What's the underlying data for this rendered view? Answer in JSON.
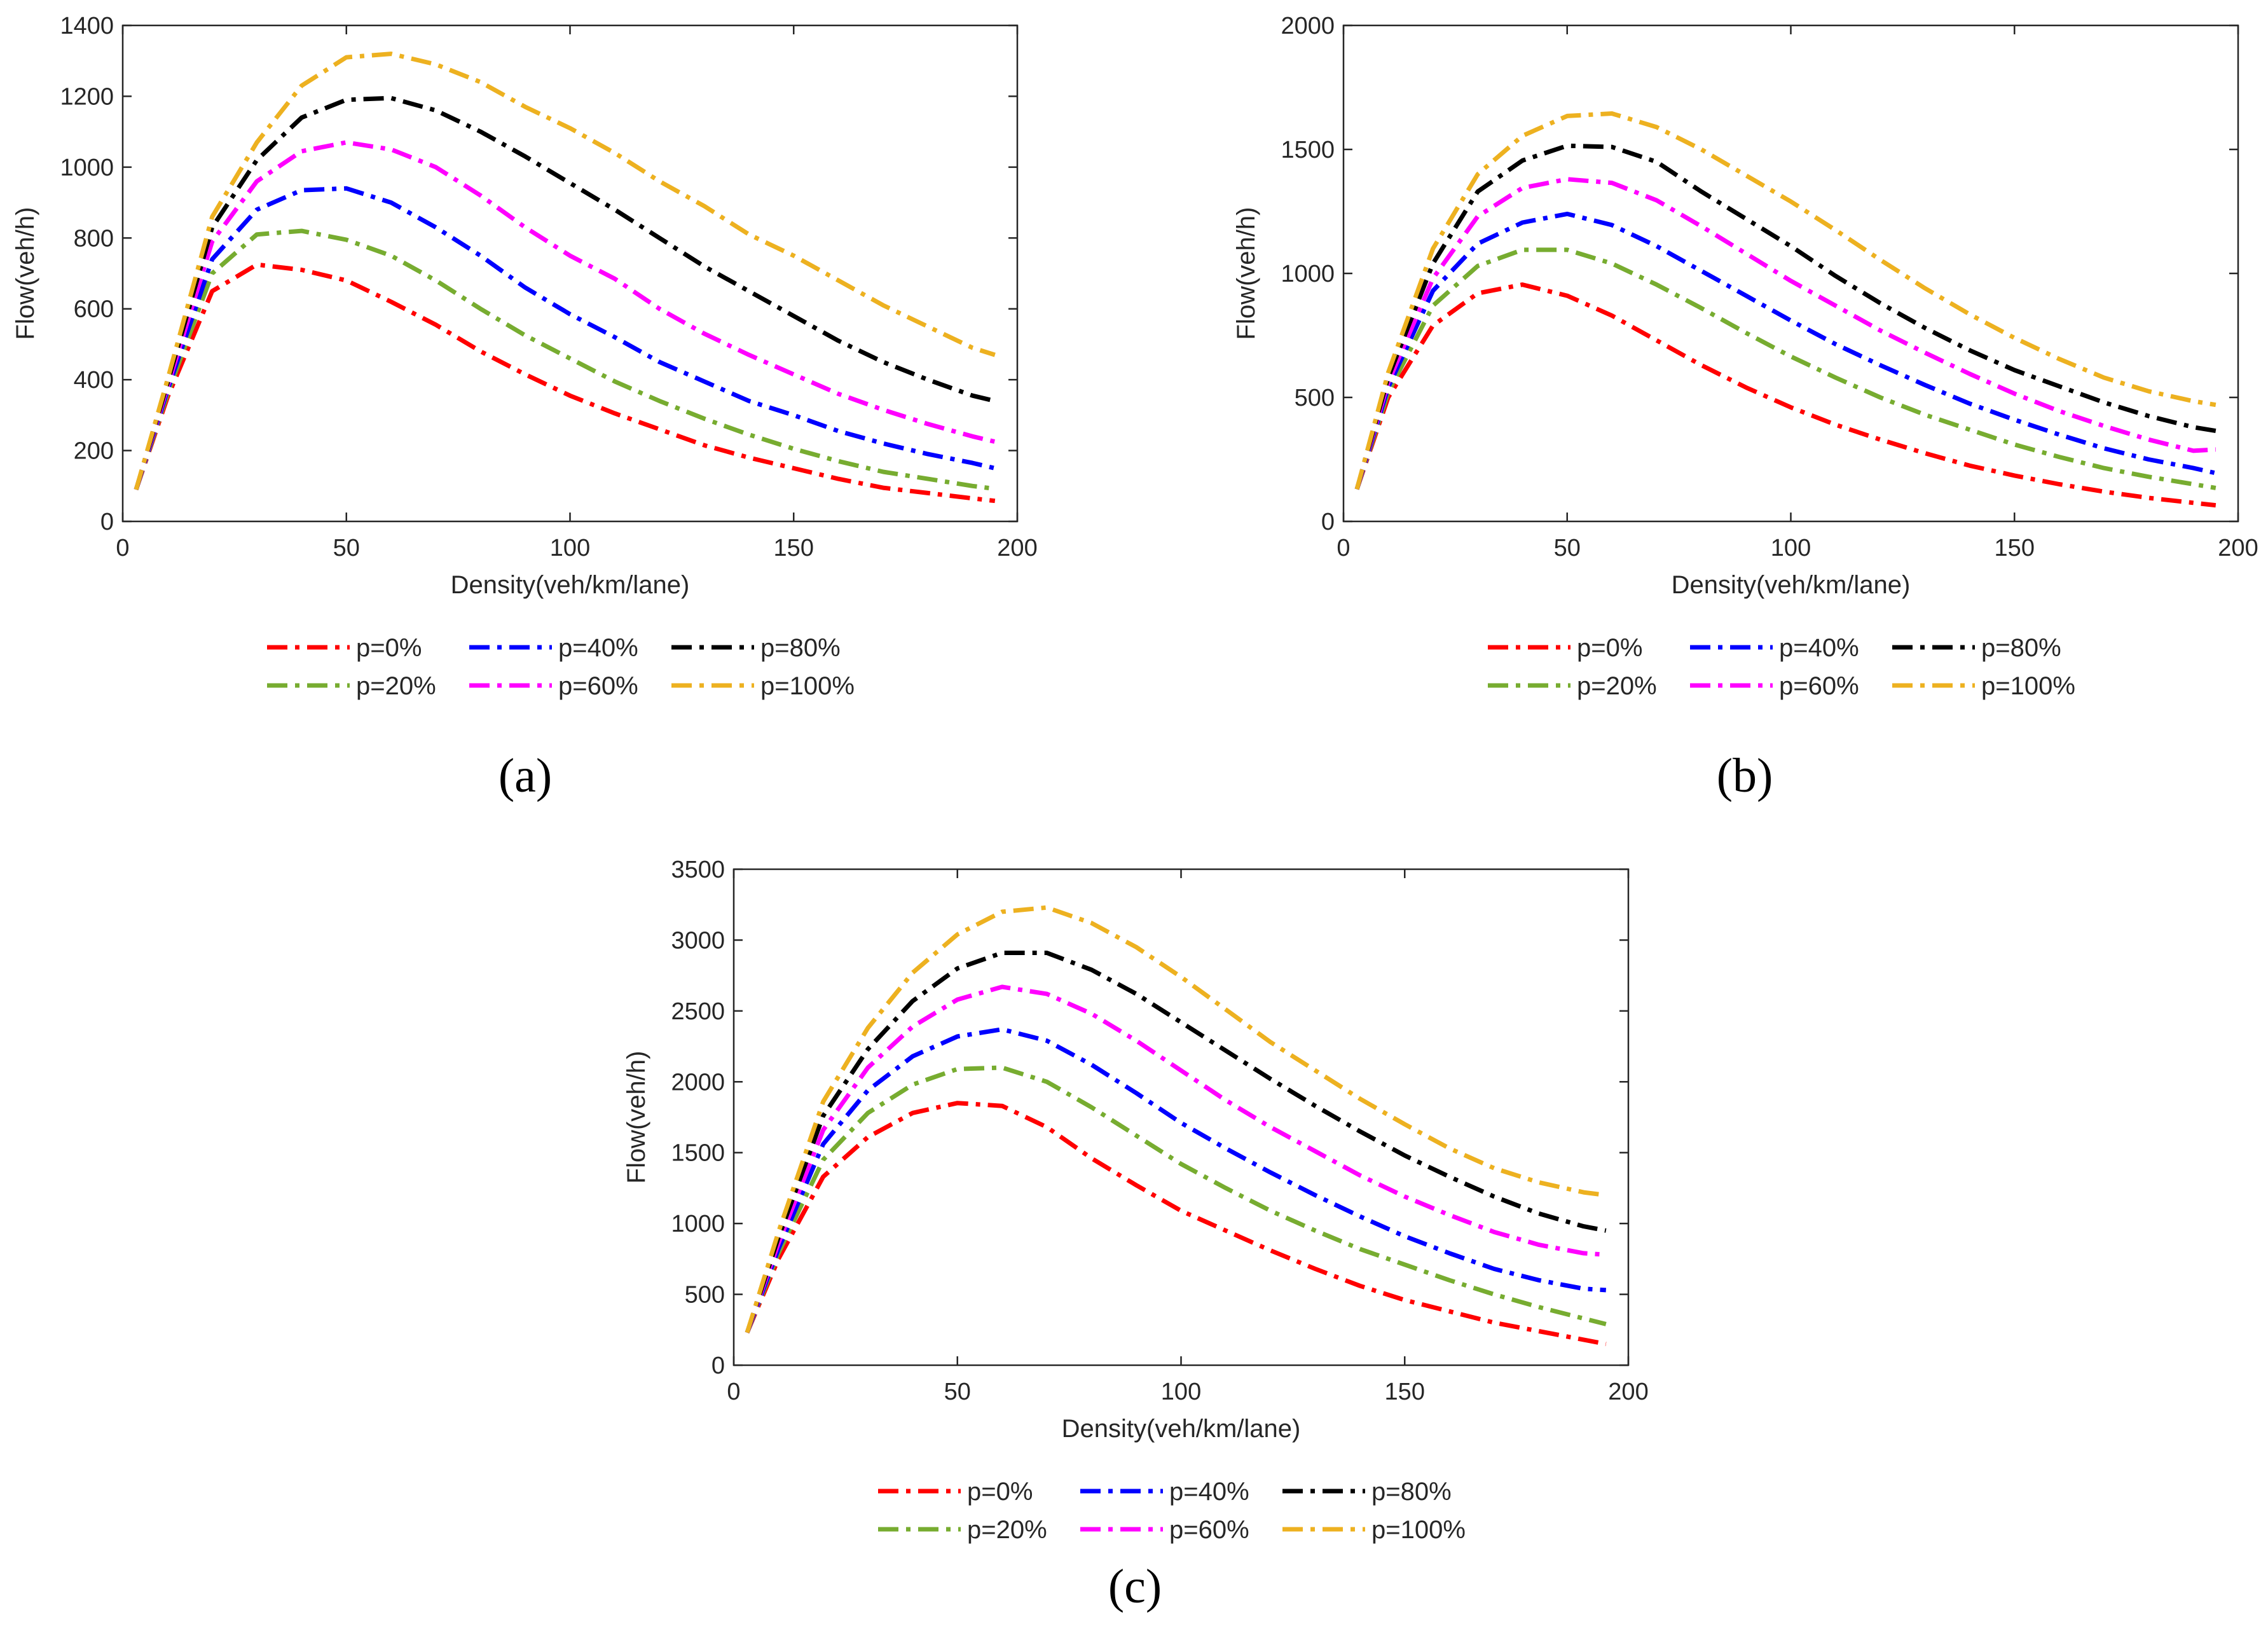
{
  "chart_data": [
    {
      "type": "line",
      "panel_label": "a",
      "panel_label_text": "(a)",
      "xlabel": "Density(veh/km/lane)",
      "ylabel": "Flow(veh/h)",
      "xlim": [
        0,
        200
      ],
      "ylim": [
        0,
        1400
      ],
      "xticks": [
        0,
        50,
        100,
        150,
        200
      ],
      "yticks": [
        0,
        200,
        400,
        600,
        800,
        1000,
        1200,
        1400
      ],
      "grid": false,
      "legend_position": "below",
      "x": [
        3,
        10,
        20,
        30,
        40,
        50,
        60,
        70,
        80,
        90,
        100,
        110,
        120,
        130,
        140,
        150,
        160,
        170,
        180,
        190,
        195
      ],
      "series": [
        {
          "name": "p=0%",
          "color": "#ff0000",
          "values": [
            90,
            350,
            650,
            725,
            710,
            680,
            620,
            555,
            480,
            415,
            355,
            305,
            260,
            215,
            180,
            150,
            120,
            95,
            80,
            65,
            58
          ]
        },
        {
          "name": "p=20%",
          "color": "#77ac30",
          "values": [
            90,
            360,
            700,
            810,
            820,
            795,
            750,
            680,
            600,
            525,
            460,
            395,
            340,
            290,
            245,
            205,
            170,
            140,
            120,
            100,
            92
          ]
        },
        {
          "name": "p=40%",
          "color": "#0000ff",
          "values": [
            90,
            370,
            740,
            880,
            935,
            940,
            900,
            830,
            750,
            660,
            585,
            520,
            450,
            395,
            340,
            300,
            255,
            220,
            190,
            165,
            150
          ]
        },
        {
          "name": "p=60%",
          "color": "#ff00ff",
          "values": [
            90,
            380,
            790,
            960,
            1045,
            1070,
            1050,
            1000,
            920,
            830,
            750,
            685,
            600,
            530,
            470,
            415,
            360,
            315,
            275,
            240,
            225
          ]
        },
        {
          "name": "p=80%",
          "color": "#000000",
          "values": [
            90,
            390,
            830,
            1020,
            1140,
            1190,
            1195,
            1160,
            1100,
            1030,
            955,
            880,
            800,
            720,
            650,
            580,
            510,
            450,
            400,
            355,
            340
          ]
        },
        {
          "name": "p=100%",
          "color": "#edb120",
          "values": [
            90,
            400,
            860,
            1070,
            1230,
            1310,
            1320,
            1290,
            1240,
            1170,
            1110,
            1040,
            960,
            890,
            810,
            750,
            680,
            610,
            550,
            490,
            470
          ]
        }
      ]
    },
    {
      "type": "line",
      "panel_label": "b",
      "panel_label_text": "(b)",
      "xlabel": "Density(veh/km/lane)",
      "ylabel": "Flow(veh/h)",
      "xlim": [
        0,
        200
      ],
      "ylim": [
        0,
        2000
      ],
      "xticks": [
        0,
        50,
        100,
        150,
        200
      ],
      "yticks": [
        0,
        500,
        1000,
        1500,
        2000
      ],
      "grid": false,
      "legend_position": "below",
      "x": [
        3,
        10,
        20,
        30,
        40,
        50,
        60,
        70,
        80,
        90,
        100,
        110,
        120,
        130,
        140,
        150,
        160,
        170,
        180,
        190,
        195
      ],
      "series": [
        {
          "name": "p=0%",
          "color": "#ff0000",
          "values": [
            130,
            500,
            790,
            920,
            955,
            910,
            830,
            730,
            630,
            540,
            460,
            390,
            330,
            275,
            225,
            185,
            150,
            120,
            95,
            75,
            65
          ]
        },
        {
          "name": "p=20%",
          "color": "#77ac30",
          "values": [
            130,
            520,
            870,
            1030,
            1095,
            1095,
            1040,
            955,
            860,
            760,
            665,
            580,
            500,
            430,
            370,
            310,
            260,
            215,
            180,
            150,
            135
          ]
        },
        {
          "name": "p=40%",
          "color": "#0000ff",
          "values": [
            130,
            540,
            930,
            1120,
            1205,
            1240,
            1195,
            1110,
            1010,
            910,
            810,
            715,
            630,
            550,
            475,
            410,
            350,
            295,
            250,
            215,
            195
          ]
        },
        {
          "name": "p=60%",
          "color": "#ff00ff",
          "values": [
            130,
            560,
            980,
            1230,
            1345,
            1380,
            1365,
            1295,
            1190,
            1080,
            970,
            870,
            770,
            680,
            595,
            515,
            445,
            385,
            330,
            285,
            290
          ]
        },
        {
          "name": "p=80%",
          "color": "#000000",
          "values": [
            130,
            580,
            1040,
            1330,
            1455,
            1515,
            1510,
            1450,
            1330,
            1220,
            1110,
            990,
            880,
            780,
            690,
            610,
            545,
            480,
            425,
            380,
            365
          ]
        },
        {
          "name": "p=100%",
          "color": "#edb120",
          "values": [
            130,
            600,
            1100,
            1400,
            1555,
            1635,
            1645,
            1590,
            1500,
            1395,
            1290,
            1175,
            1055,
            940,
            835,
            740,
            655,
            580,
            525,
            485,
            470
          ]
        }
      ]
    },
    {
      "type": "line",
      "panel_label": "c",
      "panel_label_text": "(c)",
      "xlabel": "Density(veh/km/lane)",
      "ylabel": "Flow(veh/h)",
      "xlim": [
        0,
        200
      ],
      "ylim": [
        0,
        3500
      ],
      "xticks": [
        0,
        50,
        100,
        150,
        200
      ],
      "yticks": [
        0,
        500,
        1000,
        1500,
        2000,
        2500,
        3000,
        3500
      ],
      "grid": false,
      "legend_position": "below",
      "x": [
        3,
        10,
        20,
        30,
        40,
        50,
        60,
        70,
        80,
        90,
        100,
        110,
        120,
        130,
        140,
        150,
        160,
        170,
        180,
        190,
        195
      ],
      "series": [
        {
          "name": "p=0%",
          "color": "#ff0000",
          "values": [
            230,
            750,
            1330,
            1610,
            1780,
            1850,
            1830,
            1680,
            1460,
            1270,
            1090,
            950,
            810,
            680,
            560,
            460,
            380,
            300,
            240,
            180,
            150
          ]
        },
        {
          "name": "p=20%",
          "color": "#77ac30",
          "values": [
            230,
            790,
            1450,
            1780,
            1980,
            2090,
            2100,
            2000,
            1820,
            1620,
            1420,
            1250,
            1090,
            950,
            820,
            710,
            600,
            500,
            410,
            330,
            290
          ]
        },
        {
          "name": "p=40%",
          "color": "#0000ff",
          "values": [
            230,
            820,
            1560,
            1940,
            2180,
            2320,
            2370,
            2290,
            2120,
            1920,
            1710,
            1530,
            1360,
            1200,
            1050,
            910,
            790,
            680,
            600,
            540,
            530
          ]
        },
        {
          "name": "p=60%",
          "color": "#ff00ff",
          "values": [
            230,
            860,
            1660,
            2100,
            2390,
            2580,
            2670,
            2620,
            2480,
            2290,
            2080,
            1870,
            1680,
            1510,
            1340,
            1190,
            1060,
            940,
            850,
            790,
            780
          ]
        },
        {
          "name": "p=80%",
          "color": "#000000",
          "values": [
            230,
            900,
            1760,
            2230,
            2570,
            2800,
            2910,
            2910,
            2790,
            2620,
            2420,
            2220,
            2020,
            1830,
            1650,
            1480,
            1330,
            1190,
            1070,
            980,
            950
          ]
        },
        {
          "name": "p=100%",
          "color": "#edb120",
          "values": [
            230,
            940,
            1860,
            2380,
            2770,
            3040,
            3200,
            3230,
            3120,
            2950,
            2740,
            2510,
            2280,
            2080,
            1880,
            1700,
            1530,
            1390,
            1290,
            1220,
            1200
          ]
        }
      ]
    }
  ]
}
